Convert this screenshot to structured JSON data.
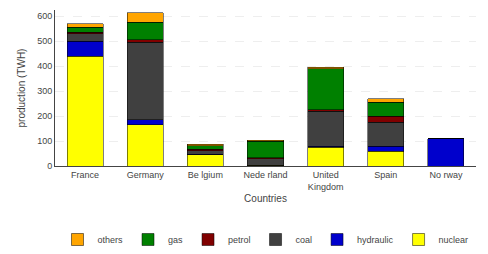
{
  "chart_data": {
    "type": "bar",
    "stacked": true,
    "xlabel": "Countries",
    "ylabel": "production (TWH)",
    "categories": [
      "France",
      "Germany",
      "Be lgium",
      "Nede rland",
      "United\nKingdom",
      "Spain",
      "No rway"
    ],
    "series": [
      {
        "name": "nuclear",
        "color": "#ffff00",
        "values": [
          440,
          165,
          45,
          4,
          75,
          60,
          0
        ]
      },
      {
        "name": "hydraulic",
        "color": "#0000cc",
        "values": [
          60,
          20,
          2,
          0,
          5,
          20,
          110
        ]
      },
      {
        "name": "coal",
        "color": "#404040",
        "values": [
          30,
          310,
          15,
          25,
          140,
          95,
          0
        ]
      },
      {
        "name": "petrol",
        "color": "#800000",
        "values": [
          5,
          10,
          5,
          5,
          5,
          25,
          0
        ]
      },
      {
        "name": "gas",
        "color": "#008000",
        "values": [
          20,
          70,
          15,
          65,
          165,
          55,
          0
        ]
      },
      {
        "name": "others",
        "color": "#ffa500",
        "values": [
          15,
          40,
          5,
          5,
          5,
          15,
          0
        ]
      }
    ],
    "ylim": [
      0,
      625
    ],
    "yticks": [
      0,
      100,
      200,
      300,
      400,
      500,
      600
    ],
    "grid": true,
    "legend": "bottom"
  }
}
